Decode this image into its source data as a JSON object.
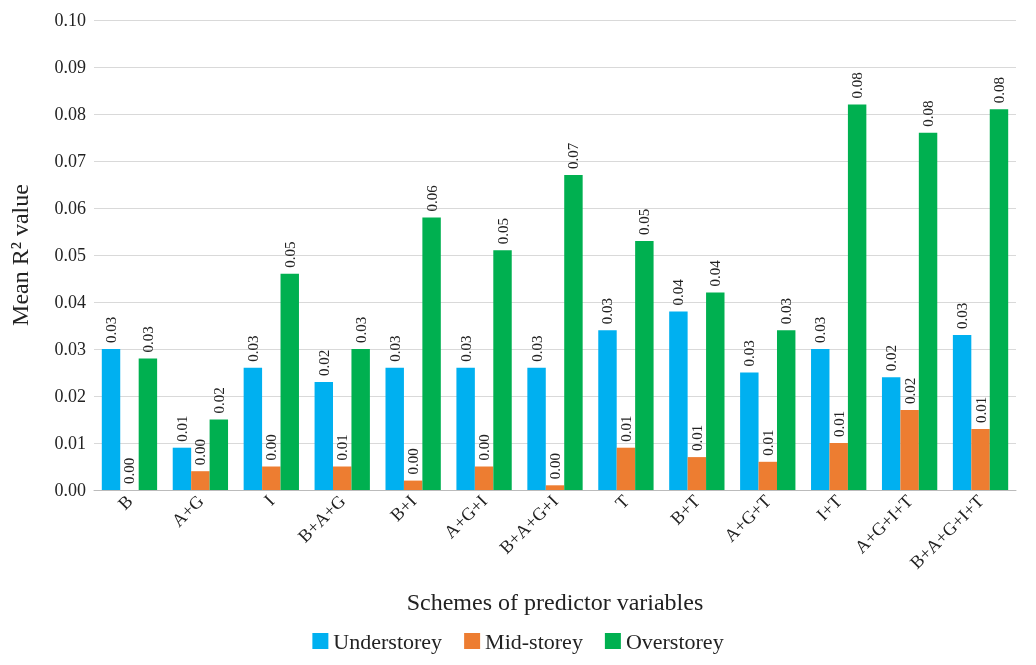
{
  "chart_data": {
    "type": "bar",
    "xlabel": "Schemes of predictor variables",
    "ylabel": "Mean R² value",
    "categories": [
      "B",
      "A+G",
      "I",
      "B+A+G",
      "B+I",
      "A+G+I",
      "B+A+G+I",
      "T",
      "B+T",
      "A+G+T",
      "I+T",
      "A+G+I+T",
      "B+A+G+I+T"
    ],
    "series": [
      {
        "name": "Understorey",
        "color": "#00b0f0",
        "values": [
          0.03,
          0.009,
          0.026,
          0.023,
          0.026,
          0.026,
          0.026,
          0.034,
          0.038,
          0.025,
          0.03,
          0.024,
          0.033
        ],
        "value_labels": [
          "0.03",
          "0.01",
          "0.03",
          "0.02",
          "0.03",
          "0.03",
          "0.03",
          "0.03",
          "0.04",
          "0.03",
          "0.03",
          "0.02",
          "0.03"
        ]
      },
      {
        "name": "Mid-storey",
        "color": "#ed7d31",
        "values": [
          0.0,
          0.004,
          0.005,
          0.005,
          0.002,
          0.005,
          0.001,
          0.009,
          0.007,
          0.006,
          0.01,
          0.017,
          0.013
        ],
        "value_labels": [
          "0.00",
          "0.00",
          "0.00",
          "0.01",
          "0.00",
          "0.00",
          "0.00",
          "0.01",
          "0.01",
          "0.01",
          "0.01",
          "0.02",
          "0.01"
        ]
      },
      {
        "name": "Overstorey",
        "color": "#00b050",
        "values": [
          0.028,
          0.015,
          0.046,
          0.03,
          0.058,
          0.051,
          0.067,
          0.053,
          0.042,
          0.034,
          0.082,
          0.076,
          0.081
        ],
        "value_labels": [
          "0.03",
          "0.02",
          "0.05",
          "0.03",
          "0.06",
          "0.05",
          "0.07",
          "0.05",
          "0.04",
          "0.03",
          "0.08",
          "0.08",
          "0.08"
        ]
      }
    ],
    "ylim": [
      0,
      0.1
    ],
    "yticks": [
      {
        "value": 0,
        "label": "0.00"
      },
      {
        "value": 0.01,
        "label": "0.01"
      },
      {
        "value": 0.02,
        "label": "0.02"
      },
      {
        "value": 0.03,
        "label": "0.03"
      },
      {
        "value": 0.04,
        "label": "0.04"
      },
      {
        "value": 0.05,
        "label": "0.05"
      },
      {
        "value": 0.06,
        "label": "0.06"
      },
      {
        "value": 0.07,
        "label": "0.07"
      },
      {
        "value": 0.08,
        "label": "0.08"
      },
      {
        "value": 0.09,
        "label": "0.09"
      },
      {
        "value": 0.1,
        "label": "0.10"
      }
    ],
    "grid": "y",
    "legend": "bottom"
  }
}
